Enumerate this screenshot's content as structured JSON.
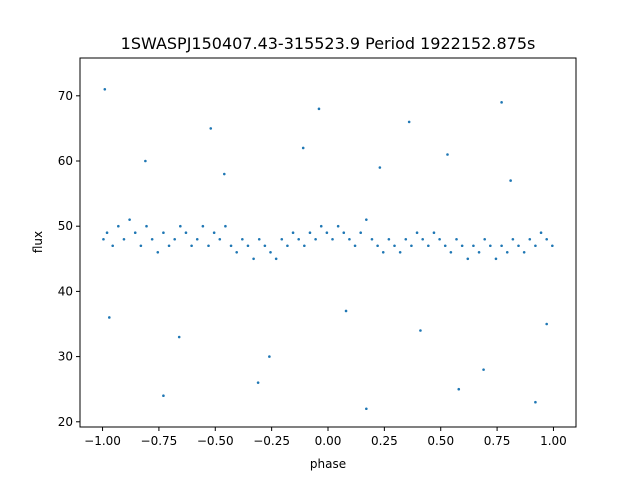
{
  "chart_data": {
    "type": "scatter",
    "title": "1SWASPJ150407.43-315523.9 Period 1922152.875s",
    "xlabel": "phase",
    "ylabel": "flux",
    "xlim": [
      -1.1,
      1.1
    ],
    "ylim": [
      19.2,
      75.8
    ],
    "x_ticks": [
      -1.0,
      -0.75,
      -0.5,
      -0.25,
      0.0,
      0.25,
      0.5,
      0.75,
      1.0
    ],
    "x_tick_labels": [
      "−1.00",
      "−0.75",
      "−0.50",
      "−0.25",
      "0.00",
      "0.25",
      "0.50",
      "0.75",
      "1.00"
    ],
    "y_ticks": [
      20,
      30,
      40,
      50,
      60,
      70
    ],
    "y_tick_labels": [
      "20",
      "30",
      "40",
      "50",
      "60",
      "70"
    ],
    "point_color": "#1f77b4",
    "grid": false,
    "series": [
      {
        "name": "",
        "x": [
          -0.996,
          -0.98,
          -0.955,
          -0.93,
          -0.905,
          -0.88,
          -0.855,
          -0.83,
          -0.805,
          -0.78,
          -0.755,
          -0.73,
          -0.705,
          -0.68,
          -0.655,
          -0.63,
          -0.605,
          -0.58,
          -0.555,
          -0.53,
          -0.505,
          -0.48,
          -0.455,
          -0.43,
          -0.405,
          -0.38,
          -0.355,
          -0.33,
          -0.305,
          -0.28,
          -0.255,
          -0.23,
          -0.205,
          -0.18,
          -0.155,
          -0.13,
          -0.105,
          -0.08,
          -0.055,
          -0.03,
          -0.005,
          0.02,
          0.045,
          0.07,
          0.095,
          0.12,
          0.145,
          0.17,
          0.195,
          0.22,
          0.245,
          0.27,
          0.295,
          0.32,
          0.345,
          0.37,
          0.395,
          0.42,
          0.445,
          0.47,
          0.495,
          0.52,
          0.545,
          0.57,
          0.595,
          0.62,
          0.645,
          0.67,
          0.695,
          0.72,
          0.745,
          0.77,
          0.795,
          0.82,
          0.845,
          0.87,
          0.895,
          0.92,
          0.945,
          0.97,
          0.995,
          -0.97,
          -0.81,
          -0.66,
          -0.46,
          -0.26,
          -0.11,
          0.08,
          0.23,
          0.41,
          0.53,
          0.69,
          0.81,
          0.97,
          -0.99,
          -0.73,
          -0.52,
          -0.31,
          -0.04,
          0.17,
          0.36,
          0.58,
          0.77,
          0.92
        ],
        "y": [
          48,
          49,
          47,
          50,
          48,
          51,
          49,
          47,
          50,
          48,
          46,
          49,
          47,
          48,
          50,
          49,
          47,
          48,
          50,
          47,
          49,
          48,
          50,
          47,
          46,
          48,
          47,
          45,
          48,
          47,
          46,
          45,
          48,
          47,
          49,
          48,
          47,
          49,
          48,
          50,
          49,
          48,
          50,
          49,
          48,
          47,
          49,
          51,
          48,
          47,
          46,
          48,
          47,
          46,
          48,
          47,
          49,
          48,
          47,
          49,
          48,
          47,
          46,
          48,
          47,
          45,
          47,
          46,
          48,
          47,
          45,
          47,
          46,
          48,
          47,
          46,
          48,
          47,
          49,
          48,
          47,
          36,
          60,
          33,
          58,
          30,
          62,
          37,
          59,
          34,
          61,
          28,
          57,
          35,
          71,
          24,
          65,
          26,
          68,
          22,
          66,
          25,
          69,
          23
        ]
      }
    ]
  }
}
